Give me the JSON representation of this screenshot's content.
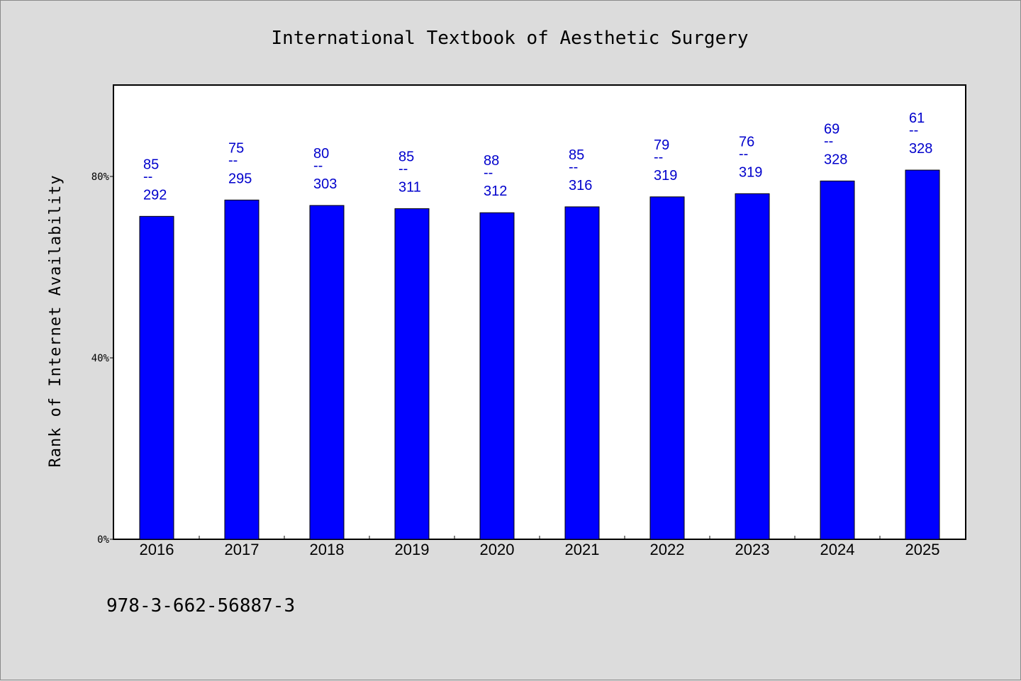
{
  "chart_data": {
    "type": "bar",
    "title": "International Textbook of Aesthetic Surgery",
    "ylabel": "Rank of Internet Availability",
    "xlabel": "",
    "ylim": [
      0,
      100
    ],
    "yticks": [
      {
        "value": 0,
        "label": "0%"
      },
      {
        "value": 40,
        "label": "40%"
      },
      {
        "value": 80,
        "label": "80%"
      }
    ],
    "grid": false,
    "legend": "none",
    "categories": [
      "2016",
      "2017",
      "2018",
      "2019",
      "2020",
      "2021",
      "2022",
      "2023",
      "2024",
      "2025"
    ],
    "values": [
      71.2,
      74.8,
      73.6,
      72.9,
      72.0,
      73.3,
      75.5,
      76.2,
      79.0,
      81.4
    ],
    "data_labels": [
      {
        "top": "85",
        "sep": "--",
        "bottom": "292"
      },
      {
        "top": "75",
        "sep": "--",
        "bottom": "295"
      },
      {
        "top": "80",
        "sep": "--",
        "bottom": "303"
      },
      {
        "top": "85",
        "sep": "--",
        "bottom": "311"
      },
      {
        "top": "88",
        "sep": "--",
        "bottom": "312"
      },
      {
        "top": "85",
        "sep": "--",
        "bottom": "316"
      },
      {
        "top": "79",
        "sep": "--",
        "bottom": "319"
      },
      {
        "top": "76",
        "sep": "--",
        "bottom": "319"
      },
      {
        "top": "69",
        "sep": "--",
        "bottom": "328"
      },
      {
        "top": "61",
        "sep": "--",
        "bottom": "328"
      }
    ],
    "colors": {
      "bar": "#0000ff",
      "label": "#0000cc",
      "background": "#dcdcdc",
      "plot": "#ffffff"
    }
  },
  "footer": {
    "isbn": "978-3-662-56887-3"
  }
}
